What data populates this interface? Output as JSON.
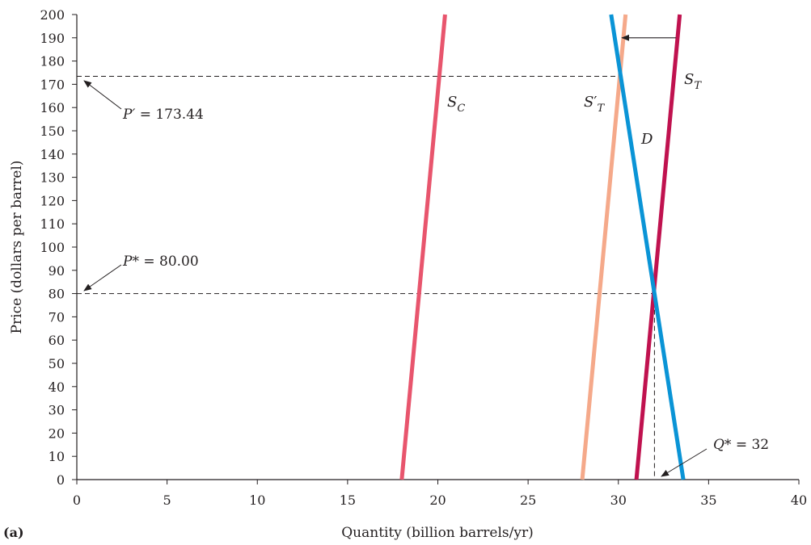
{
  "chart_data": {
    "type": "line",
    "panel_label": "(a)",
    "xlabel": "Quantity (billion barrels/yr)",
    "ylabel": "Price (dollars per barrel)",
    "xlim": [
      0,
      40
    ],
    "ylim": [
      0,
      200
    ],
    "x_ticks": [
      "0",
      "5",
      "10",
      "15",
      "20",
      "25",
      "30",
      "35",
      "40"
    ],
    "y_ticks": [
      "0",
      "10",
      "20",
      "30",
      "40",
      "50",
      "60",
      "70",
      "80",
      "90",
      "100",
      "110",
      "120",
      "130",
      "140",
      "150",
      "160",
      "170",
      "180",
      "190",
      "200"
    ],
    "grid": false,
    "series": [
      {
        "name": "S_C",
        "label_main": "S",
        "label_sub": "C",
        "label_prime": "",
        "color": "#e8556d",
        "points": [
          [
            18.0,
            0
          ],
          [
            20.4,
            200
          ]
        ]
      },
      {
        "name": "S'_T",
        "label_main": "S",
        "label_sub": "T",
        "label_prime": "′",
        "color": "#f5a98a",
        "points": [
          [
            28.0,
            0
          ],
          [
            30.4,
            200
          ]
        ]
      },
      {
        "name": "S_T",
        "label_main": "S",
        "label_sub": "T",
        "label_prime": "",
        "color": "#c0124f",
        "points": [
          [
            31.0,
            0
          ],
          [
            33.4,
            200
          ]
        ]
      },
      {
        "name": "D",
        "label_main": "D",
        "label_sub": "",
        "label_prime": "",
        "color": "#0a94d6",
        "points": [
          [
            29.6,
            200
          ],
          [
            33.6,
            0
          ]
        ]
      }
    ],
    "annotations": {
      "p_prime": {
        "var": "P′",
        "text": " = 173.44",
        "value": 173.44
      },
      "p_star": {
        "var": "P*",
        "text": " = 80.00",
        "value": 80.0
      },
      "q_star": {
        "var": "Q*",
        "text": " = 32",
        "value": 32
      },
      "shift_arrow": {
        "from": [
          33.2,
          190
        ],
        "to": [
          30.2,
          190
        ]
      }
    }
  }
}
